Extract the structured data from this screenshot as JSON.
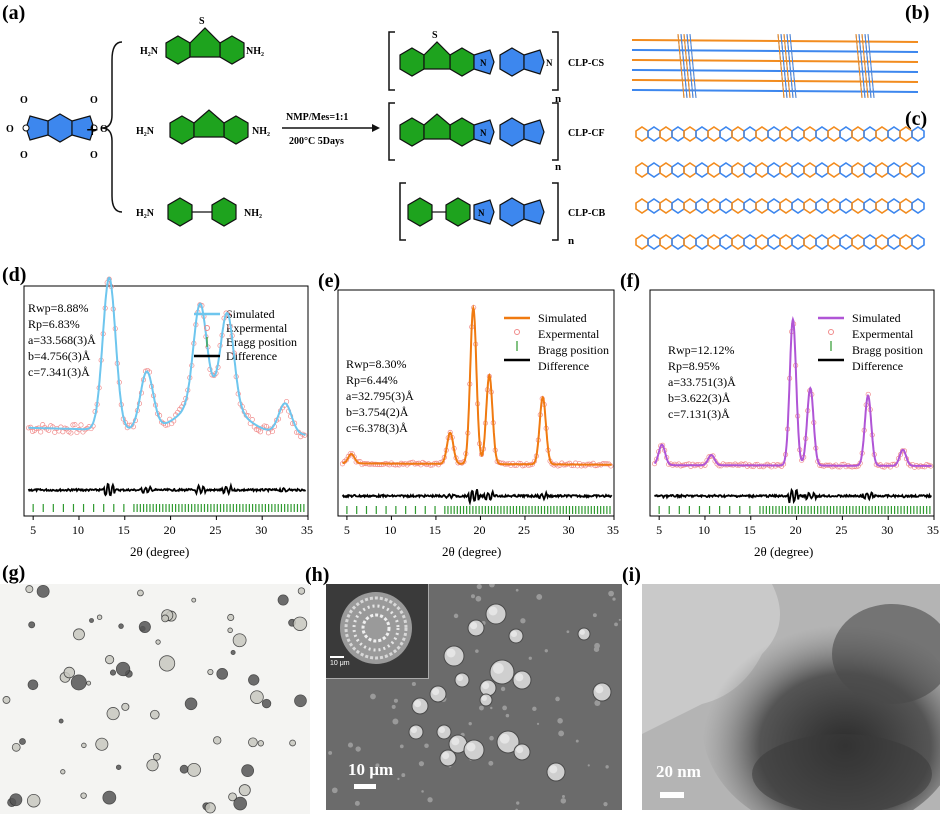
{
  "figure": {
    "panel_labels": {
      "a": "(a)",
      "b": "(b)",
      "c": "(c)",
      "d": "(d)",
      "e": "(e)",
      "f": "(f)",
      "g": "(g)",
      "h": "(h)",
      "i": "(i)"
    }
  },
  "scheme": {
    "plus": "+",
    "amine_left": [
      "H₂N",
      "H₂N",
      "H₂N"
    ],
    "amine_right": [
      "NH₂",
      "NH₂",
      "NH₂"
    ],
    "condition_top": "NMP/Mes=1:1",
    "condition_bottom": "200°C 5Days",
    "products": [
      "CLP-CS",
      "CLP-CF",
      "CLP-CB"
    ],
    "repeat": "n",
    "atom_N": "N",
    "atom_O": "O",
    "atom_S": "S",
    "colors": {
      "blue": "#3d87ee",
      "green": "#1ea31e",
      "orange": "#f28c1f"
    }
  },
  "xrd_common": {
    "xlabel": "2θ (degree)",
    "xticks": [
      "5",
      "10",
      "15",
      "20",
      "25",
      "30",
      "35"
    ],
    "legend": {
      "simulated": "Simulated",
      "experimental": "Expermental",
      "bragg": "Bragg position",
      "difference": "Difference"
    }
  },
  "chart_data": [
    {
      "type": "line",
      "panel": "(d)",
      "xlabel": "2θ (degree)",
      "xlim": [
        4,
        35
      ],
      "series": [
        {
          "name": "Simulated",
          "color": "#6ec6ee"
        },
        {
          "name": "Expermental",
          "color": "#e57373"
        },
        {
          "name": "Difference",
          "color": "#000000"
        }
      ],
      "stats": [
        "Rwp=8.88%",
        "Rp=6.83%",
        "a=33.568(3)Å",
        "b=4.756(3)Å",
        "c=7.341(3)Å"
      ],
      "peaks": [
        [
          13.3,
          1.0
        ],
        [
          17.4,
          0.38
        ],
        [
          23.2,
          0.62
        ],
        [
          26.2,
          0.58
        ],
        [
          32.5,
          0.2
        ]
      ],
      "background": 0.16
    },
    {
      "type": "line",
      "panel": "(e)",
      "xlabel": "2θ (degree)",
      "xlim": [
        4,
        35
      ],
      "series": [
        {
          "name": "Simulated",
          "color": "#f07a10"
        },
        {
          "name": "Expermental",
          "color": "#e57373"
        },
        {
          "name": "Difference",
          "color": "#000000"
        }
      ],
      "stats": [
        "Rwp=8.30%",
        "Rp=6.44%",
        "a=32.795(3)Å",
        "b=3.754(2)Å",
        "c=6.378(3)Å"
      ],
      "peaks": [
        [
          5.5,
          0.06
        ],
        [
          16.6,
          0.2
        ],
        [
          19.2,
          1.0
        ],
        [
          21.0,
          0.57
        ],
        [
          27.0,
          0.43
        ]
      ],
      "background": 0.03
    },
    {
      "type": "line",
      "panel": "(f)",
      "xlabel": "2θ (degree)",
      "xlim": [
        4,
        35
      ],
      "series": [
        {
          "name": "Simulated",
          "color": "#b055d6"
        },
        {
          "name": "Expermental",
          "color": "#e57373"
        },
        {
          "name": "Difference",
          "color": "#000000"
        }
      ],
      "stats": [
        "Rwp=12.12%",
        "Rp=8.95%",
        "a=33.751(3)Å",
        "b=3.622(3)Å",
        "c=7.131(3)Å"
      ],
      "peaks": [
        [
          5.3,
          0.14
        ],
        [
          10.7,
          0.07
        ],
        [
          19.6,
          1.0
        ],
        [
          21.5,
          0.53
        ],
        [
          27.8,
          0.48
        ],
        [
          31.6,
          0.11
        ]
      ],
      "background": 0.02
    }
  ],
  "micrographs": {
    "h_scale": "10 µm",
    "h_inset_scale": "10 μm",
    "i_scale": "20 nm"
  }
}
